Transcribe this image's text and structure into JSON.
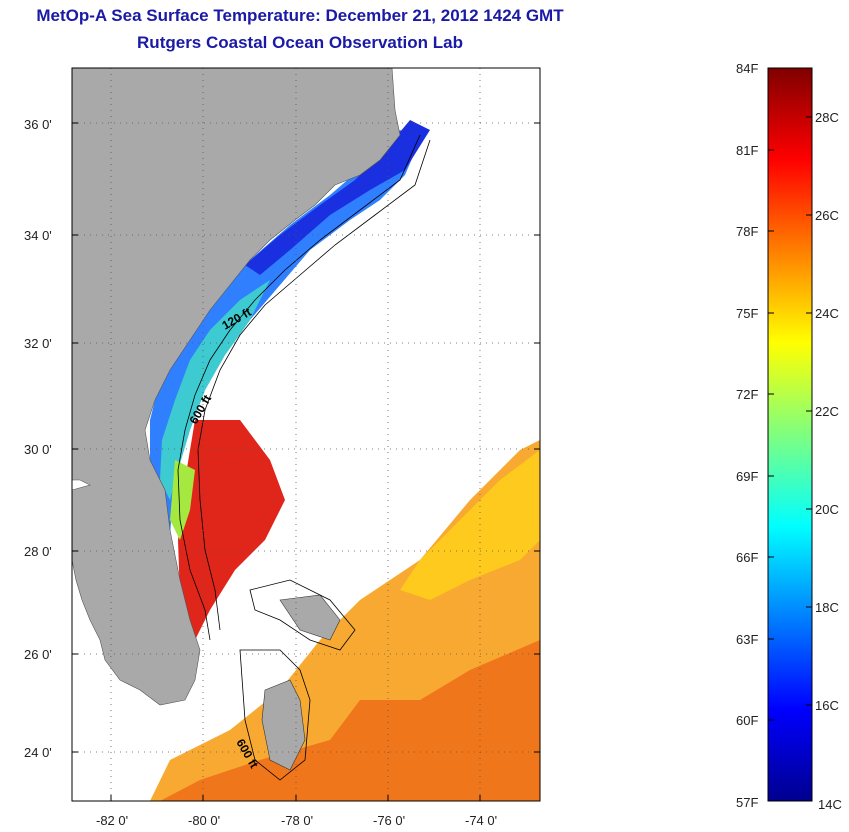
{
  "header": {
    "title": "MetOp-A Sea Surface Temperature:  December 21, 2012 1424 GMT",
    "subtitle": "Rutgers Coastal Ocean Observation Lab"
  },
  "map": {
    "lat_labels": [
      "36 0'",
      "34 0'",
      "32 0'",
      "30 0'",
      "28 0'",
      "26 0'",
      "24 0'"
    ],
    "lon_labels": [
      "-82 0'",
      "-80 0'",
      "-78 0'",
      "-76 0'",
      "-74 0'"
    ],
    "isobath_labels": [
      "120 ft",
      "600 ft",
      "600 ft"
    ],
    "colors": {
      "land": "#a9a9a9",
      "ocean_no_data": "#ffffff"
    }
  },
  "colorbar": {
    "fahrenheit_labels": [
      "84F",
      "81F",
      "78F",
      "75F",
      "72F",
      "69F",
      "66F",
      "63F",
      "60F",
      "57F"
    ],
    "celsius_labels": [
      "28C",
      "26C",
      "24C",
      "22C",
      "20C",
      "18C",
      "16C",
      "14C"
    ],
    "colormap": "jet"
  }
}
